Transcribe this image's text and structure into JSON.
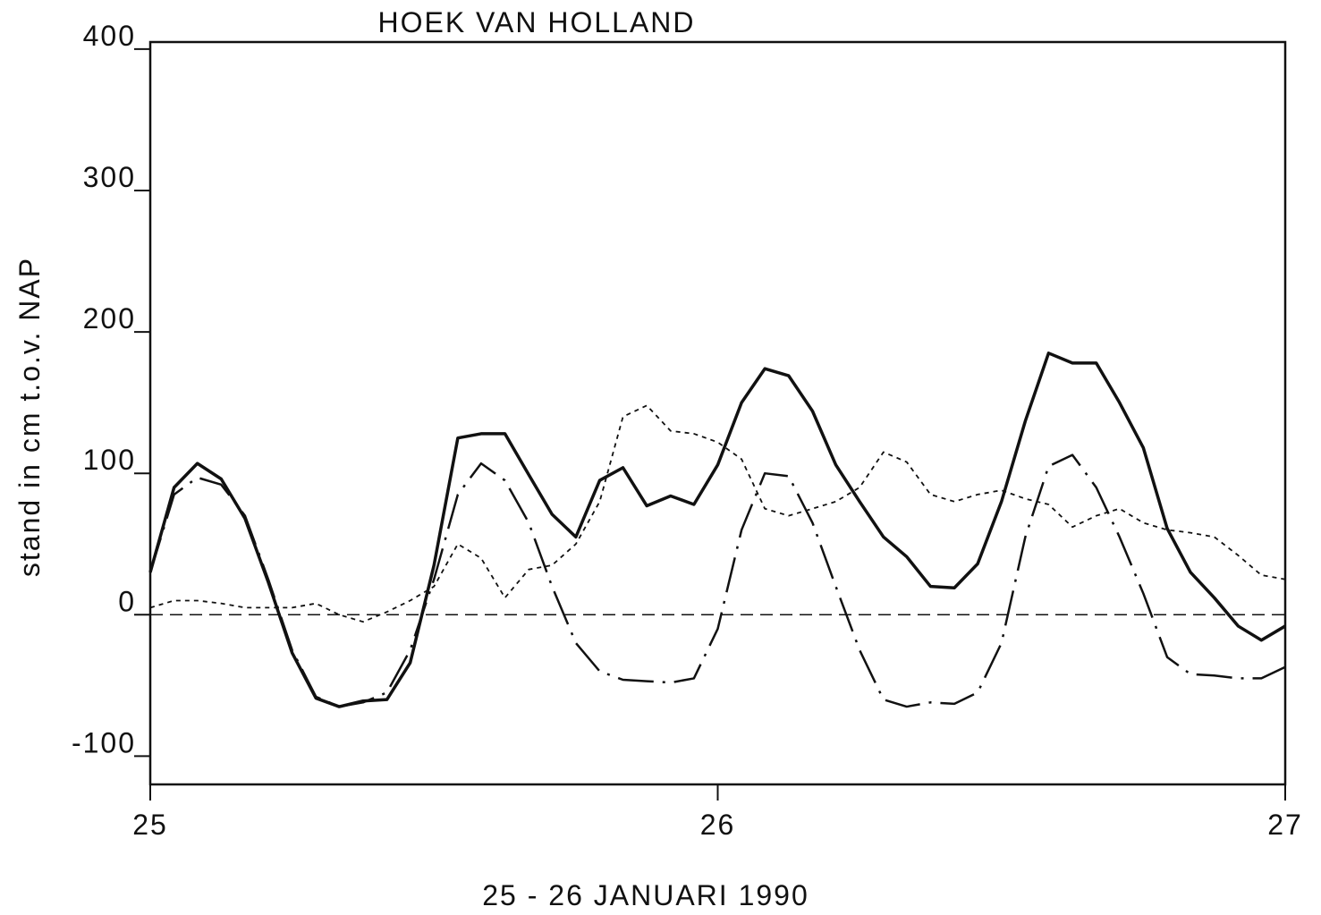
{
  "chart_data": {
    "type": "line",
    "title": "HOEK VAN HOLLAND",
    "x_label": "25 - 26 JANUARI 1990",
    "y_label": "stand in cm t.o.v. NAP",
    "x": [
      25,
      25.042,
      25.083,
      25.125,
      25.167,
      25.208,
      25.25,
      25.292,
      25.333,
      25.375,
      25.417,
      25.458,
      25.5,
      25.542,
      25.583,
      25.625,
      25.667,
      25.708,
      25.75,
      25.792,
      25.833,
      25.875,
      25.917,
      25.958,
      26,
      26.042,
      26.083,
      26.125,
      26.167,
      26.208,
      26.25,
      26.292,
      26.333,
      26.375,
      26.417,
      26.458,
      26.5,
      26.542,
      26.583,
      26.625,
      26.667,
      26.708,
      26.75,
      26.792,
      26.833,
      26.875,
      26.917,
      26.958,
      27
    ],
    "series": [
      {
        "color": "#111111",
        "line_style": "solid",
        "values": [
          30,
          90,
          107,
          96,
          68,
          23,
          -27,
          -59,
          -65,
          -61,
          -60,
          -34,
          35,
          125,
          128,
          128,
          99,
          71,
          55,
          95,
          104,
          77,
          84,
          78,
          106,
          150,
          174,
          169,
          144,
          106,
          80,
          55,
          41,
          20,
          19,
          36,
          80,
          137,
          185,
          178,
          178,
          150,
          118,
          61,
          30,
          12,
          -8,
          -18,
          -8
        ]
      },
      {
        "color": "#111111",
        "line_style": "dashdot",
        "values": [
          30,
          85,
          97,
          92,
          70,
          25,
          -25,
          -58,
          -65,
          -62,
          -55,
          -25,
          25,
          85,
          107,
          95,
          65,
          20,
          -20,
          -40,
          -46,
          -47,
          -48,
          -45,
          -10,
          60,
          100,
          98,
          65,
          20,
          -25,
          -60,
          -65,
          -62,
          -63,
          -55,
          -20,
          55,
          105,
          113,
          90,
          55,
          15,
          -30,
          -42,
          -43,
          -45,
          -45,
          -37
        ]
      },
      {
        "color": "#111111",
        "line_style": "dotted",
        "values": [
          5,
          10,
          10,
          8,
          5,
          5,
          5,
          8,
          0,
          -5,
          2,
          10,
          20,
          50,
          40,
          12,
          32,
          35,
          50,
          80,
          140,
          148,
          130,
          128,
          122,
          110,
          75,
          70,
          75,
          80,
          90,
          115,
          108,
          85,
          80,
          85,
          88,
          82,
          78,
          62,
          70,
          75,
          65,
          60,
          58,
          55,
          42,
          28,
          25
        ]
      }
    ],
    "reference_line": 0,
    "xlim": [
      25,
      27
    ],
    "xticks": [
      25,
      26,
      27
    ],
    "ylim": [
      -120,
      405
    ],
    "yticks": [
      -100,
      0,
      100,
      200,
      300,
      400
    ]
  }
}
